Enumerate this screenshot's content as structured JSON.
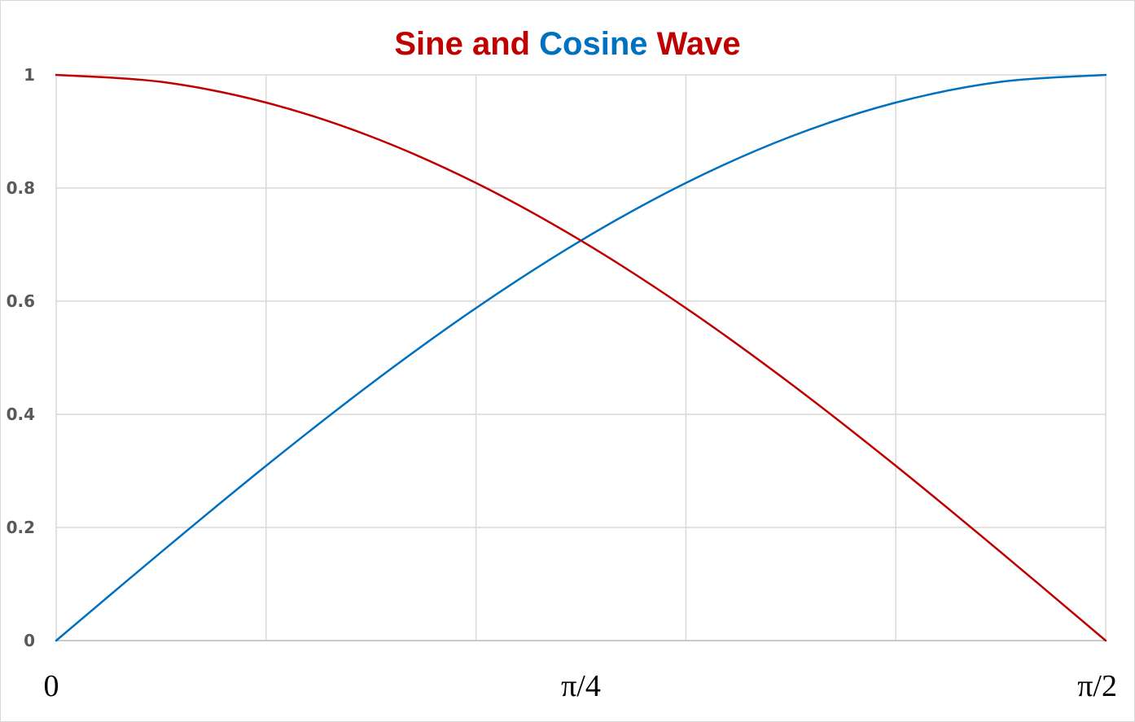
{
  "chart_data": {
    "type": "line",
    "title": {
      "parts": [
        {
          "text": "Sine",
          "color": "#C00000"
        },
        {
          "text": " and ",
          "color": "#C00000"
        },
        {
          "text": "Cosine",
          "color": "#0070C0"
        },
        {
          "text": " Wave",
          "color": "#C00000"
        }
      ]
    },
    "xlabel": "",
    "ylabel": "",
    "xlim": [
      0,
      1.5708
    ],
    "ylim": [
      0,
      1
    ],
    "x_ticks": [
      {
        "value": 0,
        "label": "0"
      },
      {
        "value": 0.7854,
        "label": "π/4"
      },
      {
        "value": 1.5708,
        "label": "π/2"
      }
    ],
    "x_gridlines": [
      0,
      0.31416,
      0.62832,
      0.94248,
      1.25664,
      1.5708
    ],
    "y_ticks": [
      {
        "value": 0,
        "label": "0"
      },
      {
        "value": 0.2,
        "label": "0.2"
      },
      {
        "value": 0.4,
        "label": "0.4"
      },
      {
        "value": 0.6,
        "label": "0.6"
      },
      {
        "value": 0.8,
        "label": "0.8"
      },
      {
        "value": 1,
        "label": "1"
      }
    ],
    "grid": true,
    "series": [
      {
        "color": "#0070C0",
        "x": [
          0,
          0.15708,
          0.31416,
          0.47124,
          0.62832,
          0.7854,
          0.94248,
          1.09956,
          1.25664,
          1.41372,
          1.5708
        ],
        "values": [
          0,
          0.1564,
          0.309,
          0.454,
          0.5878,
          0.7071,
          0.809,
          0.891,
          0.9511,
          0.9877,
          1
        ]
      },
      {
        "color": "#C00000",
        "x": [
          0,
          0.15708,
          0.31416,
          0.47124,
          0.62832,
          0.7854,
          0.94248,
          1.09956,
          1.25664,
          1.41372,
          1.5708
        ],
        "values": [
          1,
          0.9877,
          0.9511,
          0.891,
          0.809,
          0.7071,
          0.5878,
          0.454,
          0.309,
          0.1564,
          0
        ]
      }
    ]
  }
}
